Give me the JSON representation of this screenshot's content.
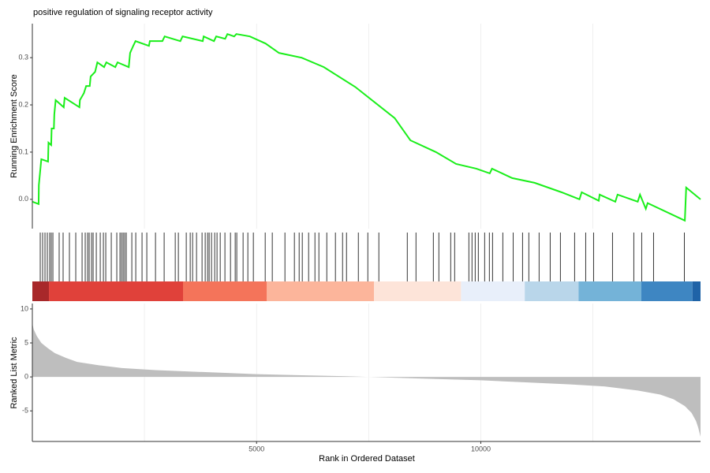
{
  "chart_data": [
    {
      "type": "line",
      "title": "positive regulation of signaling receptor activity",
      "ylabel": "Running Enrichment Score",
      "color": "#1aee1a",
      "xlim": [
        0,
        14900
      ],
      "ylim": [
        -0.062,
        0.372
      ],
      "yticks": [
        {
          "value": 0,
          "label": "0.0"
        },
        0.1,
        0.2,
        0.3
      ],
      "xgrid": [
        2500,
        5000,
        7500,
        10000,
        12500
      ],
      "x": [
        0,
        140,
        145,
        200,
        350,
        360,
        420,
        430,
        480,
        490,
        520,
        700,
        720,
        1050,
        1060,
        1150,
        1200,
        1280,
        1300,
        1400,
        1450,
        1600,
        1650,
        1850,
        1900,
        2150,
        2180,
        2250,
        2300,
        2600,
        2620,
        2900,
        2950,
        3300,
        3350,
        3800,
        3820,
        4050,
        4100,
        4300,
        4350,
        4500,
        4550,
        4850,
        5200,
        5500,
        6000,
        6500,
        7200,
        8080,
        8430,
        9000,
        9450,
        9900,
        10200,
        10250,
        10700,
        11200,
        11800,
        12200,
        12250,
        12630,
        12650,
        13000,
        13050,
        13500,
        13550,
        13680,
        13720,
        14550,
        14580,
        14900
      ],
      "values": [
        -0.005,
        -0.01,
        0.03,
        0.085,
        0.08,
        0.12,
        0.115,
        0.15,
        0.15,
        0.18,
        0.21,
        0.195,
        0.215,
        0.195,
        0.21,
        0.225,
        0.24,
        0.24,
        0.26,
        0.27,
        0.29,
        0.28,
        0.29,
        0.28,
        0.29,
        0.28,
        0.31,
        0.325,
        0.335,
        0.325,
        0.335,
        0.335,
        0.345,
        0.335,
        0.345,
        0.335,
        0.345,
        0.335,
        0.345,
        0.34,
        0.35,
        0.345,
        0.35,
        0.345,
        0.33,
        0.31,
        0.3,
        0.28,
        0.238,
        0.172,
        0.125,
        0.1,
        0.075,
        0.065,
        0.055,
        0.065,
        0.045,
        0.035,
        0.015,
        0.0,
        0.015,
        -0.003,
        0.01,
        -0.005,
        0.01,
        -0.005,
        0.01,
        -0.02,
        -0.008,
        -0.045,
        0.025,
        0.0
      ]
    },
    {
      "type": "rug",
      "xlim": [
        0,
        14900
      ],
      "x": [
        176,
        229,
        282,
        334,
        387,
        422,
        458,
        598,
        686,
        827,
        968,
        1109,
        1179,
        1232,
        1267,
        1320,
        1355,
        1426,
        1514,
        1584,
        1637,
        1760,
        1883,
        1954,
        1989,
        2024,
        2059,
        2094,
        2218,
        2306,
        2446,
        2552,
        2746,
        2939,
        3186,
        3256,
        3432,
        3520,
        3573,
        3661,
        3784,
        3854,
        3907,
        3942,
        3995,
        4066,
        4118,
        4189,
        4294,
        4418,
        4523,
        4558,
        4699,
        4805,
        4928,
        5192,
        5350,
        5632,
        5843,
        5949,
        6019,
        6160,
        6301,
        6389,
        6565,
        6758,
        6917,
        7005,
        7269,
        7480,
        7726,
        8360,
        8554,
        8941,
        9064,
        9328,
        9416,
        9733,
        9803,
        9874,
        9944,
        10085,
        10190,
        10261,
        10490,
        10720,
        10930,
        11070,
        11299,
        11546,
        11774,
        12091,
        12338,
        12514,
        12936,
        13411,
        13587,
        13851,
        14538
      ],
      "band_edges": [
        0,
        370,
        3360,
        5230,
        7620,
        9560,
        10980,
        12180,
        13580,
        14720,
        14900
      ],
      "band_colors": [
        "#a8282a",
        "#e0413a",
        "#f4745a",
        "#fcb59b",
        "#fde4d9",
        "#e8effa",
        "#b9d6ea",
        "#74b3d8",
        "#3e86c2",
        "#1f63a7"
      ]
    },
    {
      "type": "area",
      "xlabel": "Rank in Ordered Dataset",
      "ylabel": "Ranked List Metric",
      "color": "#bebebe",
      "xlim": [
        0,
        14900
      ],
      "ylim": [
        -9.5,
        10.8
      ],
      "yticks": [
        -5,
        0,
        5,
        10
      ],
      "xticks": [
        5000,
        10000
      ],
      "xgrid": [
        2500,
        5000,
        7500,
        10000,
        12500
      ],
      "x": [
        0,
        30,
        100,
        200,
        350,
        500,
        750,
        1000,
        1500,
        2000,
        2750,
        3500,
        4250,
        5000,
        6000,
        7000,
        7500,
        8000,
        9000,
        10000,
        11000,
        12000,
        12750,
        13500,
        14000,
        14300,
        14550,
        14700,
        14800,
        14850,
        14900
      ],
      "values": [
        7.9,
        7.0,
        6.0,
        5.0,
        4.2,
        3.5,
        2.8,
        2.2,
        1.7,
        1.3,
        1.0,
        0.8,
        0.6,
        0.4,
        0.25,
        0.1,
        0,
        -0.1,
        -0.3,
        -0.5,
        -0.8,
        -1.1,
        -1.4,
        -2.0,
        -2.6,
        -3.3,
        -4.3,
        -5.3,
        -6.5,
        -7.5,
        -8.8
      ]
    }
  ]
}
